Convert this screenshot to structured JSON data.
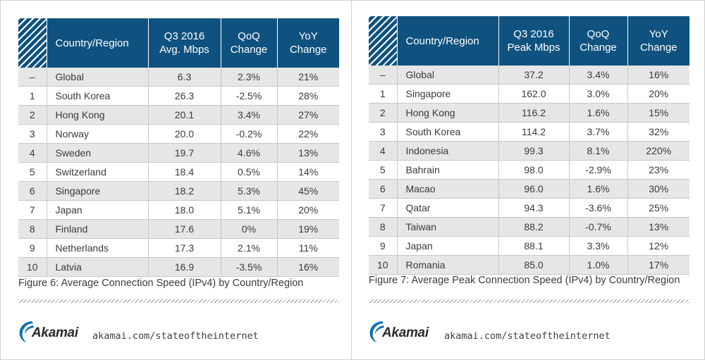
{
  "figure6": {
    "headers": [
      "",
      "Country/Region",
      "Q3 2016\nAvg. Mbps",
      "QoQ\nChange",
      "YoY\nChange"
    ],
    "rows": [
      [
        "–",
        "Global",
        "6.3",
        "2.3%",
        "21%"
      ],
      [
        "1",
        "South Korea",
        "26.3",
        "-2.5%",
        "28%"
      ],
      [
        "2",
        "Hong Kong",
        "20.1",
        "3.4%",
        "27%"
      ],
      [
        "3",
        "Norway",
        "20.0",
        "-0.2%",
        "22%"
      ],
      [
        "4",
        "Sweden",
        "19.7",
        "4.6%",
        "13%"
      ],
      [
        "5",
        "Switzerland",
        "18.4",
        "0.5%",
        "14%"
      ],
      [
        "6",
        "Singapore",
        "18.2",
        "5.3%",
        "45%"
      ],
      [
        "7",
        "Japan",
        "18.0",
        "5.1%",
        "20%"
      ],
      [
        "8",
        "Finland",
        "17.6",
        "0%",
        "19%"
      ],
      [
        "9",
        "Netherlands",
        "17.3",
        "2.1%",
        "11%"
      ],
      [
        "10",
        "Latvia",
        "16.9",
        "-3.5%",
        "16%"
      ]
    ],
    "caption": "Figure 6: Average Connection Speed (IPv4) by Country/Region"
  },
  "figure7": {
    "headers": [
      "",
      "Country/Region",
      "Q3 2016\nPeak Mbps",
      "QoQ\nChange",
      "YoY\nChange"
    ],
    "rows": [
      [
        "–",
        "Global",
        "37.2",
        "3.4%",
        "16%"
      ],
      [
        "1",
        "Singapore",
        "162.0",
        "3.0%",
        "20%"
      ],
      [
        "2",
        "Hong Kong",
        "116.2",
        "1.6%",
        "15%"
      ],
      [
        "3",
        "South Korea",
        "114.2",
        "3.7%",
        "32%"
      ],
      [
        "4",
        "Indonesia",
        "99.3",
        "8.1%",
        "220%"
      ],
      [
        "5",
        "Bahrain",
        "98.0",
        "-2.9%",
        "23%"
      ],
      [
        "6",
        "Macao",
        "96.0",
        "1.6%",
        "30%"
      ],
      [
        "7",
        "Qatar",
        "94.3",
        "-3.6%",
        "25%"
      ],
      [
        "8",
        "Taiwan",
        "88.2",
        "-0.7%",
        "13%"
      ],
      [
        "9",
        "Japan",
        "88.1",
        "3.3%",
        "12%"
      ],
      [
        "10",
        "Romania",
        "85.0",
        "1.0%",
        "17%"
      ]
    ],
    "caption": "Figure 7: Average Peak Connection Speed (IPv4) by Country/Region"
  },
  "footer": {
    "brand": "Akamai",
    "url": "akamai.com/stateoftheinternet"
  },
  "colors": {
    "header_bg": "#0f527f",
    "row_alt": "#e6e6e6",
    "logo_blue": "#0f6fb0"
  }
}
